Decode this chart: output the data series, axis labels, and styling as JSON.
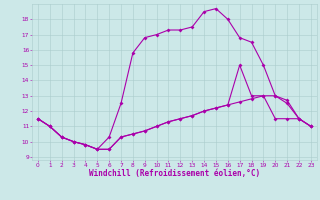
{
  "xlabel": "Windchill (Refroidissement éolien,°C)",
  "bg_color": "#cce8e8",
  "grid_color": "#aacccc",
  "line_color": "#aa00aa",
  "xlim": [
    -0.5,
    23.5
  ],
  "ylim": [
    8.8,
    19.0
  ],
  "yticks": [
    9,
    10,
    11,
    12,
    13,
    14,
    15,
    16,
    17,
    18
  ],
  "xticks": [
    0,
    1,
    2,
    3,
    4,
    5,
    6,
    7,
    8,
    9,
    10,
    11,
    12,
    13,
    14,
    15,
    16,
    17,
    18,
    19,
    20,
    21,
    22,
    23
  ],
  "line1_x": [
    0,
    1,
    2,
    3,
    4,
    5,
    6,
    7,
    8,
    9,
    10,
    11,
    12,
    13,
    14,
    15,
    16,
    17,
    18,
    19,
    20,
    21,
    22,
    23
  ],
  "line1_y": [
    11.5,
    11.0,
    10.3,
    10.0,
    9.8,
    9.5,
    10.3,
    12.5,
    15.8,
    16.8,
    17.0,
    17.3,
    17.3,
    17.5,
    18.5,
    18.7,
    18.0,
    16.8,
    16.5,
    15.0,
    13.0,
    12.5,
    11.5,
    11.0
  ],
  "line2_x": [
    0,
    1,
    2,
    3,
    4,
    5,
    6,
    7,
    8,
    9,
    10,
    11,
    12,
    13,
    14,
    15,
    16,
    17,
    18,
    19,
    20,
    21,
    22,
    23
  ],
  "line2_y": [
    11.5,
    11.0,
    10.3,
    10.0,
    9.8,
    9.5,
    9.5,
    10.3,
    10.5,
    10.7,
    11.0,
    11.3,
    11.5,
    11.7,
    12.0,
    12.2,
    12.4,
    15.0,
    13.0,
    13.0,
    11.5,
    11.5,
    11.5,
    11.0
  ],
  "line3_x": [
    0,
    1,
    2,
    3,
    4,
    5,
    6,
    7,
    8,
    9,
    10,
    11,
    12,
    13,
    14,
    15,
    16,
    17,
    18,
    19,
    20,
    21,
    22,
    23
  ],
  "line3_y": [
    11.5,
    11.0,
    10.3,
    10.0,
    9.8,
    9.5,
    9.5,
    10.3,
    10.5,
    10.7,
    11.0,
    11.3,
    11.5,
    11.7,
    12.0,
    12.2,
    12.4,
    12.6,
    12.8,
    13.0,
    13.0,
    12.7,
    11.5,
    11.0
  ],
  "ylabel_fontsize": 4.5,
  "xlabel_fontsize": 5.5,
  "tick_fontsize": 4.2
}
